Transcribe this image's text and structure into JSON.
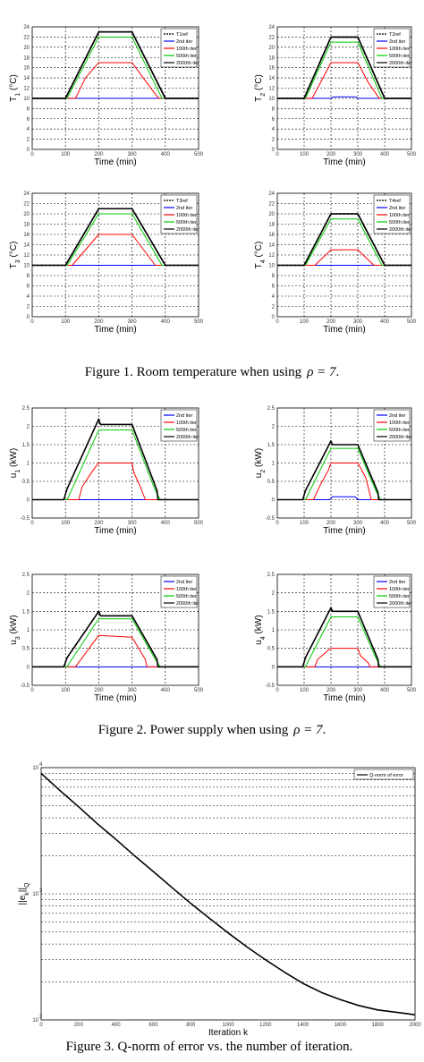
{
  "captions": [
    {
      "text": "Figure 1. Room temperature when using",
      "symbol": "ρ = 7",
      "end": "."
    },
    {
      "text": "Figure 2. Power supply when using",
      "symbol": "ρ = 7",
      "end": "."
    },
    {
      "text": "Figure 3.  Q-norm of error vs. the number of iteration.",
      "symbol": "",
      "end": ""
    }
  ],
  "colors": {
    "ref": "#000000",
    "iter2": "#0000ff",
    "iter100": "#ff0000",
    "iter500": "#00cc00",
    "iter2000": "#000000",
    "grid": "#000000"
  },
  "chart_data": [
    {
      "type": "line",
      "figure": 1,
      "ylabel": "T1 (°C)",
      "ylabel_main": "T",
      "ylabel_sub": "1",
      "ylabel_unit": "(°C)",
      "xlabel": "Time (min)",
      "xlim": [
        0,
        500
      ],
      "ylim": [
        0,
        24
      ],
      "xticks": [
        0,
        100,
        200,
        300,
        400,
        500
      ],
      "yticks": [
        0,
        2,
        4,
        6,
        8,
        10,
        12,
        14,
        16,
        18,
        20,
        22,
        24
      ],
      "legend": [
        "T1ref",
        "2nd iter",
        "100th iter",
        "500th iter",
        "2000th iter"
      ],
      "legend_position": "top-right",
      "series": [
        {
          "style": "ref",
          "x": [
            0,
            100,
            200,
            300,
            400,
            500
          ],
          "y": [
            10,
            10,
            23,
            23,
            10,
            10
          ]
        },
        {
          "style": "iter2",
          "x": [
            0,
            500
          ],
          "y": [
            10,
            10
          ]
        },
        {
          "style": "iter100",
          "x": [
            0,
            130,
            160,
            200,
            300,
            345,
            380,
            500
          ],
          "y": [
            10,
            10,
            14,
            17,
            17,
            13,
            10,
            10
          ]
        },
        {
          "style": "iter500",
          "x": [
            0,
            105,
            200,
            300,
            390,
            500
          ],
          "y": [
            10,
            10,
            22,
            22,
            10,
            10
          ]
        },
        {
          "style": "iter2000",
          "x": [
            0,
            100,
            200,
            300,
            400,
            500
          ],
          "y": [
            10,
            10,
            23,
            23,
            10,
            10
          ]
        }
      ]
    },
    {
      "type": "line",
      "figure": 1,
      "ylabel": "T2 (°C)",
      "ylabel_main": "T",
      "ylabel_sub": "2",
      "ylabel_unit": "(°C)",
      "xlabel": "Time (min)",
      "xlim": [
        0,
        500
      ],
      "ylim": [
        0,
        24
      ],
      "xticks": [
        0,
        100,
        200,
        300,
        400,
        500
      ],
      "yticks": [
        0,
        2,
        4,
        6,
        8,
        10,
        12,
        14,
        16,
        18,
        20,
        22,
        24
      ],
      "legend": [
        "T2ref",
        "2nd iter",
        "100th iter",
        "500th iter",
        "2000th iter"
      ],
      "legend_position": "top-right",
      "series": [
        {
          "style": "ref",
          "x": [
            0,
            100,
            200,
            300,
            400,
            500
          ],
          "y": [
            10,
            10,
            22,
            22,
            10,
            10
          ]
        },
        {
          "style": "iter2",
          "x": [
            0,
            200,
            210,
            290,
            300,
            500
          ],
          "y": [
            10,
            10,
            10.3,
            10.3,
            10,
            10
          ]
        },
        {
          "style": "iter100",
          "x": [
            0,
            130,
            170,
            200,
            300,
            340,
            380,
            500
          ],
          "y": [
            10,
            10,
            14,
            17,
            17,
            13,
            10,
            10
          ]
        },
        {
          "style": "iter500",
          "x": [
            0,
            105,
            200,
            300,
            390,
            500
          ],
          "y": [
            10,
            10,
            21,
            21,
            10,
            10
          ]
        },
        {
          "style": "iter2000",
          "x": [
            0,
            100,
            200,
            300,
            400,
            500
          ],
          "y": [
            10,
            10,
            22,
            22,
            10,
            10
          ]
        }
      ]
    },
    {
      "type": "line",
      "figure": 1,
      "ylabel": "T3 (°C)",
      "ylabel_main": "T",
      "ylabel_sub": "3",
      "ylabel_unit": "(°C)",
      "xlabel": "Time (min)",
      "xlim": [
        0,
        500
      ],
      "ylim": [
        0,
        24
      ],
      "xticks": [
        0,
        100,
        200,
        300,
        400,
        500
      ],
      "yticks": [
        0,
        2,
        4,
        6,
        8,
        10,
        12,
        14,
        16,
        18,
        20,
        22,
        24
      ],
      "legend": [
        "T3ref",
        "2nd iter",
        "100th iter",
        "500th iter",
        "2000th iter"
      ],
      "legend_position": "top-right",
      "series": [
        {
          "style": "ref",
          "x": [
            0,
            100,
            200,
            300,
            400,
            500
          ],
          "y": [
            10,
            10,
            21,
            21,
            10,
            10
          ]
        },
        {
          "style": "iter2",
          "x": [
            0,
            500
          ],
          "y": [
            10,
            10
          ]
        },
        {
          "style": "iter100",
          "x": [
            0,
            120,
            200,
            300,
            370,
            500
          ],
          "y": [
            10,
            10,
            16,
            16,
            10,
            10
          ]
        },
        {
          "style": "iter500",
          "x": [
            0,
            105,
            200,
            300,
            390,
            500
          ],
          "y": [
            10,
            10,
            20,
            20,
            10,
            10
          ]
        },
        {
          "style": "iter2000",
          "x": [
            0,
            100,
            200,
            300,
            400,
            500
          ],
          "y": [
            10,
            10,
            21,
            21,
            10,
            10
          ]
        }
      ]
    },
    {
      "type": "line",
      "figure": 1,
      "ylabel": "T4 (°C)",
      "ylabel_main": "T",
      "ylabel_sub": "4",
      "ylabel_unit": "(°C)",
      "xlabel": "Time (min)",
      "xlim": [
        0,
        500
      ],
      "ylim": [
        0,
        24
      ],
      "xticks": [
        0,
        100,
        200,
        300,
        400,
        500
      ],
      "yticks": [
        0,
        2,
        4,
        6,
        8,
        10,
        12,
        14,
        16,
        18,
        20,
        22,
        24
      ],
      "legend": [
        "T4ref",
        "2nd iter",
        "100th iter",
        "500th iter",
        "2000th iter"
      ],
      "legend_position": "top-right",
      "series": [
        {
          "style": "ref",
          "x": [
            0,
            100,
            200,
            300,
            400,
            500
          ],
          "y": [
            10,
            10,
            20,
            20,
            10,
            10
          ]
        },
        {
          "style": "iter2",
          "x": [
            0,
            500
          ],
          "y": [
            10,
            10
          ]
        },
        {
          "style": "iter100",
          "x": [
            0,
            140,
            200,
            300,
            360,
            500
          ],
          "y": [
            10,
            10,
            13,
            13,
            10,
            10
          ]
        },
        {
          "style": "iter500",
          "x": [
            0,
            105,
            200,
            300,
            390,
            500
          ],
          "y": [
            10,
            10,
            19,
            19,
            10,
            10
          ]
        },
        {
          "style": "iter2000",
          "x": [
            0,
            100,
            200,
            300,
            400,
            500
          ],
          "y": [
            10,
            10,
            20,
            20,
            10,
            10
          ]
        }
      ]
    },
    {
      "type": "line",
      "figure": 2,
      "ylabel": "u1 (kW)",
      "ylabel_main": "u",
      "ylabel_sub": "1",
      "ylabel_unit": "(kW)",
      "xlabel": "Time (min)",
      "xlim": [
        0,
        500
      ],
      "ylim": [
        -0.5,
        2.5
      ],
      "xticks": [
        0,
        100,
        200,
        300,
        400,
        500
      ],
      "yticks": [
        -0.5,
        0,
        0.5,
        1,
        1.5,
        2,
        2.5
      ],
      "legend": [
        "2nd iter",
        "100th iter",
        "500th iter",
        "2000th iter"
      ],
      "legend_position": "top-right",
      "series": [
        {
          "style": "iter2",
          "x": [
            0,
            500
          ],
          "y": [
            0,
            0
          ]
        },
        {
          "style": "iter100",
          "x": [
            0,
            140,
            150,
            175,
            195,
            200,
            300,
            305,
            325,
            340,
            500
          ],
          "y": [
            0,
            0,
            0.35,
            0.7,
            0.95,
            1.0,
            1.0,
            0.75,
            0.35,
            0,
            0
          ]
        },
        {
          "style": "iter500",
          "x": [
            0,
            105,
            115,
            200,
            300,
            370,
            385,
            500
          ],
          "y": [
            0,
            0,
            0.2,
            1.9,
            1.9,
            0.25,
            0,
            0
          ]
        },
        {
          "style": "iter2000",
          "x": [
            0,
            95,
            105,
            200,
            205,
            300,
            375,
            378,
            500
          ],
          "y": [
            0,
            0,
            0.3,
            2.2,
            2.05,
            2.05,
            0.25,
            0,
            0
          ]
        }
      ]
    },
    {
      "type": "line",
      "figure": 2,
      "ylabel": "u2 (kW)",
      "ylabel_main": "u",
      "ylabel_sub": "2",
      "ylabel_unit": "(kW)",
      "xlabel": "Time (min)",
      "xlim": [
        0,
        500
      ],
      "ylim": [
        -0.5,
        2.5
      ],
      "xticks": [
        0,
        100,
        200,
        300,
        400,
        500
      ],
      "yticks": [
        -0.5,
        0,
        0.5,
        1,
        1.5,
        2,
        2.5
      ],
      "legend": [
        "2nd iter",
        "100th iter",
        "500th iter",
        "2000th iter"
      ],
      "legend_position": "top-right",
      "series": [
        {
          "style": "iter2",
          "x": [
            0,
            195,
            205,
            290,
            300,
            500
          ],
          "y": [
            0,
            0,
            0.08,
            0.08,
            0,
            0
          ]
        },
        {
          "style": "iter100",
          "x": [
            0,
            135,
            160,
            190,
            200,
            300,
            330,
            350,
            500
          ],
          "y": [
            0,
            0,
            0.4,
            0.8,
            1.0,
            1.0,
            0.6,
            0,
            0
          ]
        },
        {
          "style": "iter500",
          "x": [
            0,
            105,
            115,
            200,
            300,
            370,
            385,
            500
          ],
          "y": [
            0,
            0,
            0.15,
            1.4,
            1.4,
            0.2,
            0,
            0
          ]
        },
        {
          "style": "iter2000",
          "x": [
            0,
            95,
            105,
            200,
            205,
            300,
            375,
            378,
            500
          ],
          "y": [
            0,
            0,
            0.25,
            1.6,
            1.5,
            1.5,
            0.2,
            0,
            0
          ]
        }
      ]
    },
    {
      "type": "line",
      "figure": 2,
      "ylabel": "u3 (kW)",
      "ylabel_main": "u",
      "ylabel_sub": "3",
      "ylabel_unit": "(kW)",
      "xlabel": "Time (min)",
      "xlim": [
        0,
        500
      ],
      "ylim": [
        -0.5,
        2.5
      ],
      "xticks": [
        0,
        100,
        200,
        300,
        400,
        500
      ],
      "yticks": [
        -0.5,
        0,
        0.5,
        1,
        1.5,
        2,
        2.5
      ],
      "legend": [
        "2nd iter",
        "100th iter",
        "500th iter",
        "2000th iter"
      ],
      "legend_position": "top-right",
      "series": [
        {
          "style": "iter2",
          "x": [
            0,
            500
          ],
          "y": [
            0,
            0
          ]
        },
        {
          "style": "iter100",
          "x": [
            0,
            130,
            200,
            300,
            340,
            345,
            500
          ],
          "y": [
            0,
            0,
            0.85,
            0.8,
            0.2,
            0,
            0
          ]
        },
        {
          "style": "iter500",
          "x": [
            0,
            105,
            115,
            200,
            300,
            370,
            385,
            500
          ],
          "y": [
            0,
            0,
            0.15,
            1.3,
            1.3,
            0.2,
            0,
            0
          ]
        },
        {
          "style": "iter2000",
          "x": [
            0,
            95,
            105,
            200,
            205,
            300,
            375,
            378,
            500
          ],
          "y": [
            0,
            0,
            0.25,
            1.5,
            1.38,
            1.38,
            0.2,
            0,
            0
          ]
        }
      ]
    },
    {
      "type": "line",
      "figure": 2,
      "ylabel": "u4 (kW)",
      "ylabel_main": "u",
      "ylabel_sub": "4",
      "ylabel_unit": "(kW)",
      "xlabel": "Time (min)",
      "xlim": [
        0,
        500
      ],
      "ylim": [
        -0.5,
        2.5
      ],
      "xticks": [
        0,
        100,
        200,
        300,
        400,
        500
      ],
      "yticks": [
        -0.5,
        0,
        0.5,
        1,
        1.5,
        2,
        2.5
      ],
      "legend": [
        "2nd iter",
        "100th iter",
        "500th iter",
        "2000th iter"
      ],
      "legend_position": "top-right",
      "series": [
        {
          "style": "iter2",
          "x": [
            0,
            500
          ],
          "y": [
            0,
            0
          ]
        },
        {
          "style": "iter100",
          "x": [
            0,
            140,
            150,
            190,
            200,
            300,
            310,
            340,
            345,
            500
          ],
          "y": [
            0,
            0,
            0.2,
            0.45,
            0.5,
            0.5,
            0.3,
            0.1,
            0,
            0
          ]
        },
        {
          "style": "iter500",
          "x": [
            0,
            105,
            115,
            200,
            300,
            370,
            385,
            500
          ],
          "y": [
            0,
            0,
            0.15,
            1.35,
            1.35,
            0.2,
            0,
            0
          ]
        },
        {
          "style": "iter2000",
          "x": [
            0,
            95,
            105,
            200,
            205,
            300,
            375,
            378,
            500
          ],
          "y": [
            0,
            0,
            0.25,
            1.6,
            1.5,
            1.5,
            0.2,
            0,
            0
          ]
        }
      ]
    },
    {
      "type": "line",
      "figure": 3,
      "ylabel": "||ek||Q",
      "ylabel_main": "||e",
      "ylabel_sub": "k",
      "ylabel_unit": "||",
      "ylabel_sub2": "Q",
      "xlabel": "Iteration k",
      "xlim": [
        0,
        2000
      ],
      "ylim_exp": [
        2,
        4
      ],
      "yscale": "log",
      "xticks": [
        0,
        200,
        400,
        600,
        800,
        1000,
        1200,
        1400,
        1600,
        1800,
        2000
      ],
      "ytick_labels": [
        "10",
        "10",
        "10"
      ],
      "ytick_exps": [
        "4",
        "3",
        "2"
      ],
      "legend": [
        "Q-norm of error"
      ],
      "legend_position": "top-right",
      "series": [
        {
          "style": "ref",
          "x": [
            0,
            100,
            200,
            300,
            400,
            500,
            600,
            700,
            800,
            900,
            1000,
            1100,
            1200,
            1300,
            1400,
            1500,
            1600,
            1700,
            1800,
            1900,
            2000
          ],
          "y": [
            9000,
            6600,
            4900,
            3600,
            2700,
            2000,
            1500,
            1120,
            840,
            640,
            490,
            380,
            300,
            240,
            195,
            165,
            145,
            130,
            120,
            115,
            110
          ]
        }
      ]
    }
  ]
}
